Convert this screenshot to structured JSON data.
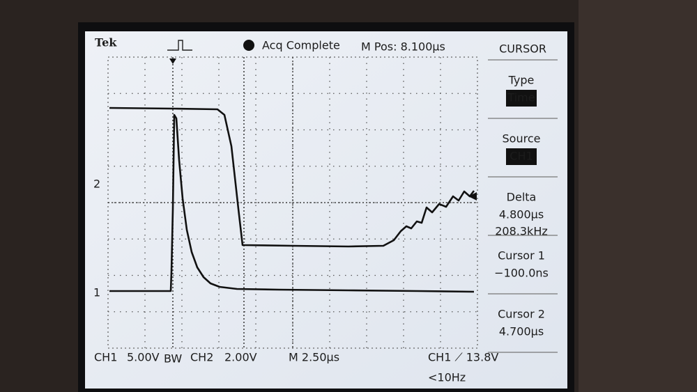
{
  "header": {
    "brand": "Tek",
    "acquisition": "Acq Complete",
    "position": "M Pos: 8.100µs"
  },
  "menu": {
    "title": "CURSOR",
    "sections": [
      {
        "label": "Type",
        "values": [
          "Time"
        ]
      },
      {
        "label": "Source",
        "values": [
          "CH1"
        ]
      },
      {
        "label": "Delta",
        "values": [
          "4.800µs",
          "208.3kHz"
        ]
      },
      {
        "label": "Cursor 1",
        "values": [
          "−100.0ns"
        ]
      },
      {
        "label": "Cursor 2",
        "values": [
          "4.700µs"
        ]
      }
    ]
  },
  "markers": {
    "channel_2": "2",
    "channel_1": "1"
  },
  "status": {
    "ch1": "CH1",
    "ch1_scale": "5.00V",
    "bandwidth": "BW",
    "ch2": "CH2",
    "ch2_scale": "2.00V",
    "timebase": "M 2.50µs",
    "trigger": "CH1 ⟋ 13.8V",
    "frequency": "<10Hz"
  }
}
